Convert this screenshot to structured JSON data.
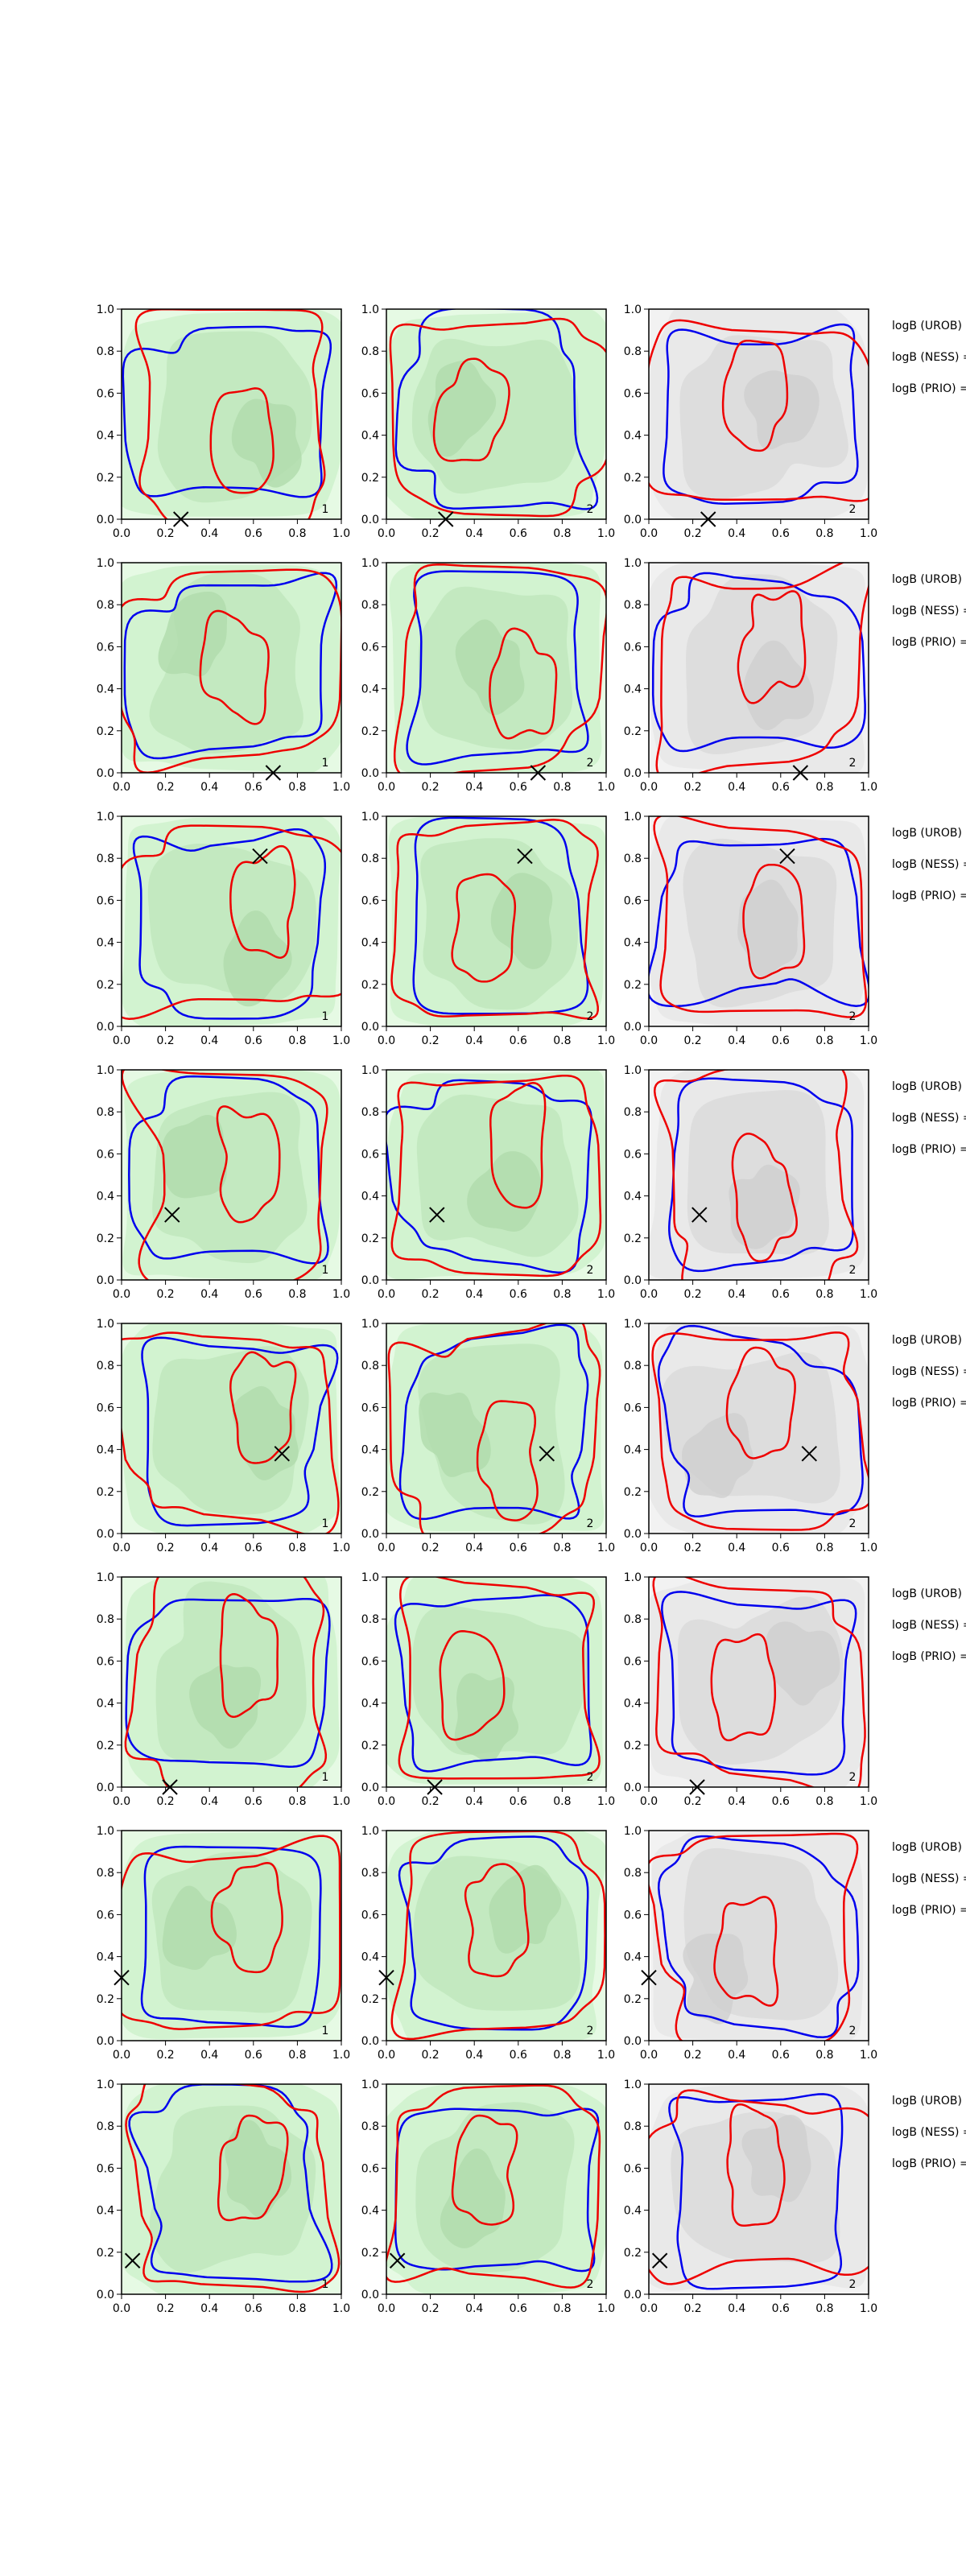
{
  "chart_data": {
    "type": "contour",
    "xlim": [
      0,
      1
    ],
    "ylim": [
      0,
      1
    ],
    "xticks": [
      {
        "value": 0,
        "label": "0.0"
      },
      {
        "value": 0.2,
        "label": "0.2"
      },
      {
        "value": 0.4,
        "label": "0.4"
      },
      {
        "value": 0.6,
        "label": "0.6"
      },
      {
        "value": 0.8,
        "label": "0.8"
      },
      {
        "value": 1,
        "label": "1.0"
      }
    ],
    "yticks": [
      {
        "value": 0,
        "label": "0.0"
      },
      {
        "value": 0.2,
        "label": "0.2"
      },
      {
        "value": 0.4,
        "label": "0.4"
      },
      {
        "value": 0.6,
        "label": "0.6"
      },
      {
        "value": 0.8,
        "label": "0.8"
      },
      {
        "value": 1,
        "label": "1.0"
      }
    ],
    "side_labels": [
      "logB (UROB) =",
      "logB (NESS) =",
      "logB (PRIO) ="
    ],
    "panel_colors": [
      "#d2f3d0",
      "#d2f3d0",
      "#e9e9e9"
    ],
    "rows": [
      {
        "marker": [
          0.27,
          0.0
        ],
        "panel_labels": [
          "1",
          "2",
          "2"
        ]
      },
      {
        "marker": [
          0.69,
          0.0
        ],
        "panel_labels": [
          "1",
          "2",
          "2"
        ]
      },
      {
        "marker": [
          0.63,
          0.81
        ],
        "panel_labels": [
          "1",
          "2",
          "2"
        ]
      },
      {
        "marker": [
          0.23,
          0.31
        ],
        "panel_labels": [
          "1",
          "2",
          "2"
        ]
      },
      {
        "marker": [
          0.73,
          0.38
        ],
        "panel_labels": [
          "1",
          "2",
          "2"
        ]
      },
      {
        "marker": [
          0.22,
          0.0
        ],
        "panel_labels": [
          "1",
          "2",
          "2"
        ]
      },
      {
        "marker": [
          0.0,
          0.3
        ],
        "panel_labels": [
          "1",
          "2",
          "2"
        ]
      },
      {
        "marker": [
          0.05,
          0.16
        ],
        "panel_labels": [
          "1",
          "2",
          "2"
        ]
      }
    ]
  }
}
